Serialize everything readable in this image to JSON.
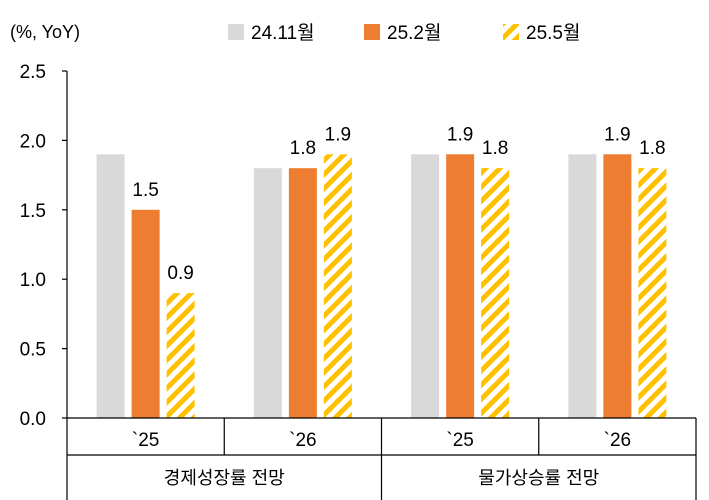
{
  "chart_data": {
    "type": "bar",
    "unit_label": "(%, YoY)",
    "ylim": [
      0,
      2.5
    ],
    "yticks": [
      "0.0",
      "0.5",
      "1.0",
      "1.5",
      "2.0",
      "2.5"
    ],
    "legend_position": "top",
    "groups": [
      {
        "label": "경제성장률 전망",
        "categories": [
          "`25",
          "`26"
        ]
      },
      {
        "label": "물가상승률 전망",
        "categories": [
          "`25",
          "`26"
        ]
      }
    ],
    "series": [
      {
        "name": "24.11월",
        "color": "#d9d9d9",
        "pattern": "solid",
        "values": [
          1.9,
          1.8,
          1.9,
          1.9
        ],
        "labels": [
          "",
          "",
          "",
          ""
        ]
      },
      {
        "name": "25.2월",
        "color": "#ed7d31",
        "pattern": "solid",
        "values": [
          1.5,
          1.8,
          1.9,
          1.9
        ],
        "labels": [
          "1.5",
          "1.8",
          "1.9",
          "1.9"
        ]
      },
      {
        "name": "25.5월",
        "color": "#ffc000",
        "pattern": "diagonal-stripe",
        "values": [
          0.9,
          1.9,
          1.8,
          1.8
        ],
        "labels": [
          "0.9",
          "1.9",
          "1.8",
          "1.8"
        ]
      }
    ]
  }
}
